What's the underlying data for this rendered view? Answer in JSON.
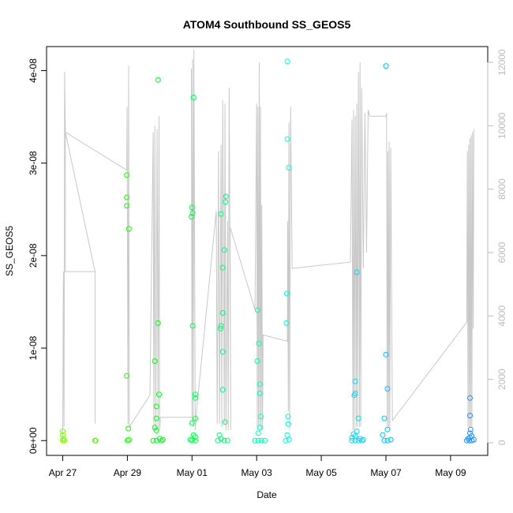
{
  "chart_data": {
    "type": "scatter",
    "title": "ATOM4 Southbound SS_GEOS5",
    "xlabel": "Date",
    "ylabel": "SS_GEOS5",
    "x_ticks": [
      "Apr 27",
      "Apr 29",
      "May 01",
      "May 03",
      "May 05",
      "May 07",
      "May 09"
    ],
    "x_tick_days": [
      0,
      2,
      4,
      6,
      8,
      10,
      12
    ],
    "xlim_days": [
      -0.5,
      13.15
    ],
    "y_ticks": [
      "0e+00",
      "1e-08",
      "2e-08",
      "3e-08",
      "4e-08"
    ],
    "y_tick_values": [
      0,
      1e-08,
      2e-08,
      3e-08,
      4e-08
    ],
    "ylim": [
      -1.6e-09,
      4.26e-08
    ],
    "secondary_axis": {
      "ticks": [
        "0",
        "2000",
        "4000",
        "6000",
        "8000",
        "10000",
        "12000"
      ],
      "tick_values": [
        0,
        2000,
        4000,
        6000,
        8000,
        10000,
        12000
      ],
      "ylim": [
        -400,
        12500
      ],
      "color": "#bbbbbb"
    },
    "colors": {
      "line": "#c8c8c8",
      "gradient": [
        "#7fff00",
        "#00ff00",
        "#00ff7f",
        "#00ffff",
        "#00bfff",
        "#1e90ff"
      ]
    },
    "grid": false,
    "legend": "none",
    "points": [
      {
        "x": 0.0,
        "y": 1e-09
      },
      {
        "x": 0.0,
        "y": 6e-10
      },
      {
        "x": 0.02,
        "y": 2e-10
      },
      {
        "x": 0.05,
        "y": 0.0
      },
      {
        "x": 0.0,
        "y": 0.0
      },
      {
        "x": 1.0,
        "y": 0.0
      },
      {
        "x": 1.02,
        "y": 0.0
      },
      {
        "x": 1.98,
        "y": 2.87e-08
      },
      {
        "x": 1.98,
        "y": 2.63e-08
      },
      {
        "x": 1.98,
        "y": 2.54e-08
      },
      {
        "x": 2.05,
        "y": 2.29e-08
      },
      {
        "x": 1.98,
        "y": 7e-09
      },
      {
        "x": 2.03,
        "y": 1.3e-09
      },
      {
        "x": 2.0,
        "y": 0.0
      },
      {
        "x": 2.05,
        "y": 1e-10
      },
      {
        "x": 2.95,
        "y": 3.9e-08
      },
      {
        "x": 2.85,
        "y": 8.6e-09
      },
      {
        "x": 2.95,
        "y": 1.27e-08
      },
      {
        "x": 2.98,
        "y": 5e-09
      },
      {
        "x": 2.9,
        "y": 3.7e-09
      },
      {
        "x": 2.9,
        "y": 2.4e-09
      },
      {
        "x": 2.85,
        "y": 1.4e-09
      },
      {
        "x": 2.9,
        "y": 1.1e-09
      },
      {
        "x": 2.8,
        "y": 0.0
      },
      {
        "x": 2.9,
        "y": 0.0
      },
      {
        "x": 3.0,
        "y": 2e-10
      },
      {
        "x": 3.05,
        "y": 0.0
      },
      {
        "x": 3.1,
        "y": 1e-10
      },
      {
        "x": 4.0,
        "y": 2.52e-08
      },
      {
        "x": 3.98,
        "y": 2.42e-08
      },
      {
        "x": 4.02,
        "y": 2.46e-08
      },
      {
        "x": 4.05,
        "y": 3.71e-08
      },
      {
        "x": 4.02,
        "y": 1.24e-08
      },
      {
        "x": 4.1,
        "y": 5e-09
      },
      {
        "x": 4.1,
        "y": 4.6e-09
      },
      {
        "x": 4.1,
        "y": 2.4e-09
      },
      {
        "x": 4.0,
        "y": 1.9e-09
      },
      {
        "x": 4.05,
        "y": 6e-10
      },
      {
        "x": 4.1,
        "y": 4e-10
      },
      {
        "x": 4.0,
        "y": 0.0
      },
      {
        "x": 3.95,
        "y": 1e-10
      },
      {
        "x": 4.1,
        "y": 0.0
      },
      {
        "x": 4.9,
        "y": 2.45e-08
      },
      {
        "x": 5.05,
        "y": 2.64e-08
      },
      {
        "x": 5.03,
        "y": 2.58e-08
      },
      {
        "x": 5.0,
        "y": 2.06e-08
      },
      {
        "x": 4.95,
        "y": 1.87e-08
      },
      {
        "x": 4.95,
        "y": 1.38e-08
      },
      {
        "x": 4.9,
        "y": 1.24e-08
      },
      {
        "x": 4.88,
        "y": 1.21e-08
      },
      {
        "x": 4.95,
        "y": 9.6e-09
      },
      {
        "x": 4.95,
        "y": 5.5e-09
      },
      {
        "x": 5.02,
        "y": 2e-09
      },
      {
        "x": 4.85,
        "y": 6e-10
      },
      {
        "x": 4.9,
        "y": 2e-10
      },
      {
        "x": 5.0,
        "y": 0.0
      },
      {
        "x": 5.1,
        "y": 0.0
      },
      {
        "x": 4.8,
        "y": 0.0
      },
      {
        "x": 6.03,
        "y": 1.41e-08
      },
      {
        "x": 6.07,
        "y": 1.05e-08
      },
      {
        "x": 6.02,
        "y": 8.6e-09
      },
      {
        "x": 6.1,
        "y": 6.1e-09
      },
      {
        "x": 6.1,
        "y": 5.1e-09
      },
      {
        "x": 6.13,
        "y": 2.6e-09
      },
      {
        "x": 6.1,
        "y": 1.4e-09
      },
      {
        "x": 6.05,
        "y": 8e-10
      },
      {
        "x": 5.95,
        "y": 0.0
      },
      {
        "x": 6.05,
        "y": 0.0
      },
      {
        "x": 6.15,
        "y": 0.0
      },
      {
        "x": 6.25,
        "y": 0.0
      },
      {
        "x": 6.95,
        "y": 4.1e-08
      },
      {
        "x": 6.95,
        "y": 3.26e-08
      },
      {
        "x": 7.0,
        "y": 2.95e-08
      },
      {
        "x": 6.93,
        "y": 1.59e-08
      },
      {
        "x": 6.92,
        "y": 1.27e-08
      },
      {
        "x": 6.97,
        "y": 2.6e-09
      },
      {
        "x": 6.98,
        "y": 1.8e-09
      },
      {
        "x": 6.95,
        "y": 6e-10
      },
      {
        "x": 6.9,
        "y": 0.0
      },
      {
        "x": 7.0,
        "y": 1e-10
      },
      {
        "x": 10.0,
        "y": 4.05e-08
      },
      {
        "x": 10.0,
        "y": 9.3e-09
      },
      {
        "x": 10.05,
        "y": 5.6e-09
      },
      {
        "x": 9.95,
        "y": 2.4e-09
      },
      {
        "x": 10.05,
        "y": 1.2e-09
      },
      {
        "x": 9.9,
        "y": 6e-10
      },
      {
        "x": 9.95,
        "y": 0.0
      },
      {
        "x": 10.05,
        "y": 0.0
      },
      {
        "x": 10.15,
        "y": 1e-10
      },
      {
        "x": 9.1,
        "y": 1.82e-08
      },
      {
        "x": 9.05,
        "y": 6.4e-09
      },
      {
        "x": 9.05,
        "y": 5.1e-09
      },
      {
        "x": 9.02,
        "y": 4.9e-09
      },
      {
        "x": 9.15,
        "y": 2.4e-09
      },
      {
        "x": 9.1,
        "y": 1e-09
      },
      {
        "x": 9.0,
        "y": 7e-10
      },
      {
        "x": 8.95,
        "y": 3e-10
      },
      {
        "x": 9.05,
        "y": 5e-10
      },
      {
        "x": 9.2,
        "y": 2e-10
      },
      {
        "x": 8.95,
        "y": 0.0
      },
      {
        "x": 9.05,
        "y": 0.0
      },
      {
        "x": 9.15,
        "y": 0.0
      },
      {
        "x": 9.25,
        "y": 0.0
      },
      {
        "x": 9.3,
        "y": 1e-10
      },
      {
        "x": 12.6,
        "y": 4.6e-09
      },
      {
        "x": 12.6,
        "y": 2.7e-09
      },
      {
        "x": 12.62,
        "y": 1.2e-09
      },
      {
        "x": 12.6,
        "y": 8e-10
      },
      {
        "x": 12.65,
        "y": 5e-10
      },
      {
        "x": 12.55,
        "y": 2e-10
      },
      {
        "x": 12.5,
        "y": 0.0
      },
      {
        "x": 12.58,
        "y": 0.0
      },
      {
        "x": 12.66,
        "y": 0.0
      },
      {
        "x": 12.72,
        "y": 1e-10
      },
      {
        "x": 12.6,
        "y": 3e-10
      }
    ],
    "altitude_path": [
      [
        0.0,
        0
      ],
      [
        0.02,
        5400
      ],
      [
        0.04,
        500
      ],
      [
        0.06,
        11700
      ],
      [
        0.08,
        9800
      ],
      [
        1.0,
        5400
      ],
      [
        1.0,
        600
      ],
      [
        1.0,
        5400
      ],
      [
        0.08,
        5400
      ],
      [
        0.08,
        9800
      ],
      [
        1.98,
        8600
      ],
      [
        1.99,
        10600
      ],
      [
        2.02,
        600
      ],
      [
        2.04,
        11900
      ],
      [
        2.06,
        500
      ],
      [
        2.7,
        1500
      ],
      [
        2.8,
        9800
      ],
      [
        2.82,
        400
      ],
      [
        2.85,
        10000
      ],
      [
        2.88,
        400
      ],
      [
        2.92,
        9900
      ],
      [
        2.95,
        400
      ],
      [
        2.98,
        10300
      ],
      [
        3.0,
        400
      ],
      [
        3.02,
        800
      ],
      [
        4.0,
        800
      ],
      [
        3.98,
        11800
      ],
      [
        4.0,
        600
      ],
      [
        4.02,
        12100
      ],
      [
        4.04,
        500
      ],
      [
        4.06,
        12400
      ],
      [
        4.1,
        400
      ],
      [
        4.15,
        1100
      ],
      [
        4.75,
        7300
      ],
      [
        4.78,
        600
      ],
      [
        4.82,
        9200
      ],
      [
        4.85,
        600
      ],
      [
        4.9,
        9400
      ],
      [
        4.92,
        500
      ],
      [
        4.95,
        10800
      ],
      [
        5.0,
        600
      ],
      [
        5.02,
        10700
      ],
      [
        5.05,
        400
      ],
      [
        5.1,
        7000
      ],
      [
        5.12,
        400
      ],
      [
        5.15,
        11200
      ],
      [
        5.2,
        400
      ],
      [
        5.18,
        6800
      ],
      [
        5.95,
        4200
      ],
      [
        6.0,
        10700
      ],
      [
        6.02,
        500
      ],
      [
        6.04,
        10600
      ],
      [
        6.06,
        500
      ],
      [
        6.08,
        12000
      ],
      [
        6.1,
        500
      ],
      [
        6.12,
        10600
      ],
      [
        6.14,
        400
      ],
      [
        6.16,
        7500
      ],
      [
        6.18,
        400
      ],
      [
        6.2,
        3400
      ],
      [
        6.95,
        3200
      ],
      [
        6.96,
        7000
      ],
      [
        6.98,
        1000
      ],
      [
        7.0,
        10100
      ],
      [
        7.02,
        400
      ],
      [
        7.05,
        10600
      ],
      [
        7.1,
        5500
      ],
      [
        8.9,
        5700
      ],
      [
        8.95,
        10200
      ],
      [
        8.98,
        400
      ],
      [
        9.0,
        10500
      ],
      [
        9.02,
        400
      ],
      [
        9.05,
        10300
      ],
      [
        9.08,
        500
      ],
      [
        9.1,
        10700
      ],
      [
        9.12,
        500
      ],
      [
        9.15,
        11700
      ],
      [
        9.18,
        500
      ],
      [
        9.2,
        12000
      ],
      [
        9.22,
        500
      ],
      [
        9.25,
        11200
      ],
      [
        9.3,
        5500
      ],
      [
        9.35,
        10400
      ],
      [
        9.4,
        6000
      ],
      [
        9.45,
        10500
      ],
      [
        9.5,
        10300
      ],
      [
        10.0,
        10300
      ],
      [
        10.02,
        10400
      ],
      [
        10.04,
        500
      ],
      [
        10.06,
        9200
      ],
      [
        10.08,
        500
      ],
      [
        10.1,
        9500
      ],
      [
        10.12,
        400
      ],
      [
        10.15,
        9300
      ],
      [
        10.2,
        700
      ],
      [
        12.5,
        3800
      ],
      [
        12.52,
        9200
      ],
      [
        12.54,
        500
      ],
      [
        12.56,
        9400
      ],
      [
        12.58,
        500
      ],
      [
        12.6,
        9600
      ],
      [
        12.62,
        500
      ],
      [
        12.64,
        9700
      ],
      [
        12.66,
        500
      ],
      [
        12.68,
        9800
      ],
      [
        12.7,
        3600
      ],
      [
        12.72,
        9900
      ]
    ]
  }
}
